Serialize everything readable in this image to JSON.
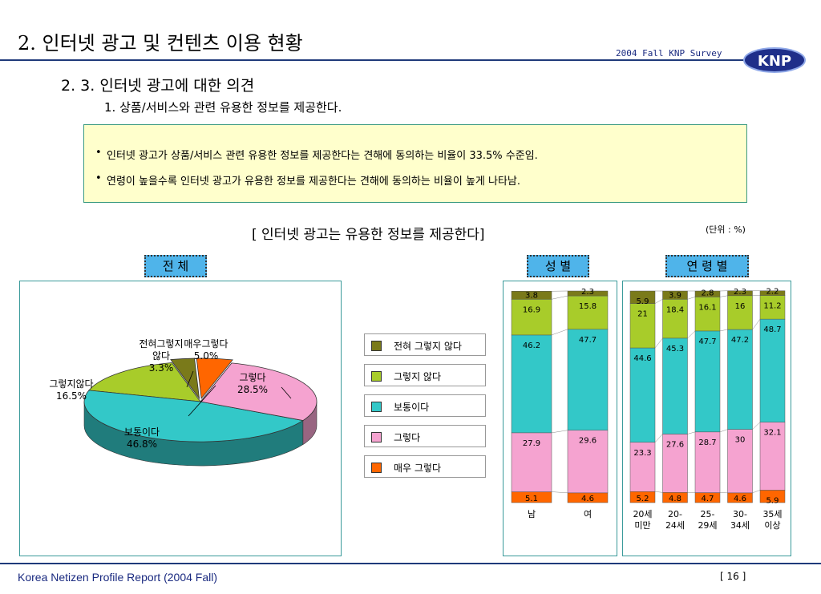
{
  "header": {
    "page_title": "2. 인터넷 광고 및 컨텐츠 이용 현황",
    "survey_label": "2004 Fall KNP Survey",
    "logo_text": "KNP"
  },
  "section": {
    "heading": "2. 3. 인터넷 광고에 대한 의견",
    "subheading": "1. 상품/서비스와 관련 유용한 정보를 제공한다."
  },
  "summary": {
    "bullets": [
      "인터넷 광고가 상품/서비스 관련 유용한 정보를 제공한다는 견해에 동의하는 비율이 33.5% 수준임.",
      "연령이 높을수록 인터넷 광고가 유용한 정보를 제공한다는 견해에 동의하는 비율이 높게 나타남."
    ]
  },
  "chart_header": {
    "title": "[ 인터넷 광고는 유용한 정보를 제공한다]",
    "unit": "(단위 : %)",
    "groups": {
      "total": "전 체",
      "gender": "성 별",
      "age": "연 령 별"
    }
  },
  "colors": {
    "strongly_disagree": "#7a7a1a",
    "disagree": "#a8cc2a",
    "neutral": "#33c8c8",
    "agree": "#f5a3d0",
    "strongly_agree": "#ff6600",
    "panel_border": "#3a9a9a",
    "tag_bg": "#4fb4ea"
  },
  "chart_data": [
    {
      "type": "pie",
      "group": "전 체",
      "slices": [
        {
          "label": "전혀그렇지 않다",
          "value": 3.3,
          "color": "#7a7a1a"
        },
        {
          "label": "그렇지않다",
          "value": 16.5,
          "color": "#a8cc2a"
        },
        {
          "label": "보통이다",
          "value": 46.8,
          "color": "#33c8c8"
        },
        {
          "label": "그렇다",
          "value": 28.5,
          "color": "#f5a3d0"
        },
        {
          "label": "매우그렇다",
          "value": 5.0,
          "color": "#ff6600"
        }
      ],
      "slice_labels": [
        {
          "name": "전혀그렇지 않다",
          "line1": "전혀그렇지",
          "line2": "않다",
          "pct": "3.3%"
        },
        {
          "name": "그렇지않다",
          "line1": "그렇지않다",
          "line2": "",
          "pct": "16.5%"
        },
        {
          "name": "보통이다",
          "line1": "보통이다",
          "line2": "",
          "pct": "46.8%"
        },
        {
          "name": "그렇다",
          "line1": "그렇다",
          "line2": "",
          "pct": "28.5%"
        },
        {
          "name": "매우그렇다",
          "line1": "매우그렇다",
          "line2": "",
          "pct": "5.0%"
        }
      ]
    },
    {
      "type": "bar",
      "stacked": true,
      "group": "성 별",
      "categories": [
        "남",
        "여"
      ],
      "ylim": [
        0,
        100
      ],
      "series": [
        {
          "name": "매우 그렇다",
          "values": [
            5.1,
            4.6
          ]
        },
        {
          "name": "그렇다",
          "values": [
            27.9,
            29.6
          ]
        },
        {
          "name": "보통이다",
          "values": [
            46.2,
            47.7
          ]
        },
        {
          "name": "그렇지 않다",
          "values": [
            16.9,
            15.8
          ]
        },
        {
          "name": "전혀 그렇지 않다",
          "values": [
            3.8,
            2.3
          ]
        }
      ]
    },
    {
      "type": "bar",
      "stacked": true,
      "group": "연 령 별",
      "categories": [
        "20세 미만",
        "20-24세",
        "25-29세",
        "30-34세",
        "35세 이상"
      ],
      "category_lines": [
        [
          "20세",
          "미만"
        ],
        [
          "20-",
          "24세"
        ],
        [
          "25-",
          "29세"
        ],
        [
          "30-",
          "34세"
        ],
        [
          "35세",
          "이상"
        ]
      ],
      "ylim": [
        0,
        100
      ],
      "series": [
        {
          "name": "매우 그렇다",
          "values": [
            5.2,
            4.8,
            4.7,
            4.6,
            5.9
          ]
        },
        {
          "name": "그렇다",
          "values": [
            23.3,
            27.6,
            28.7,
            30,
            32.1
          ]
        },
        {
          "name": "보통이다",
          "values": [
            44.6,
            45.3,
            47.7,
            47.2,
            48.7
          ]
        },
        {
          "name": "그렇지 않다",
          "values": [
            21,
            18.4,
            16.1,
            16,
            11.2
          ]
        },
        {
          "name": "전혀 그렇지 않다",
          "values": [
            5.9,
            3.9,
            2.8,
            2.3,
            2.2
          ]
        }
      ]
    }
  ],
  "legend": [
    {
      "label": "전혀 그렇지 않다",
      "color": "#7a7a1a"
    },
    {
      "label": "그렇지 않다",
      "color": "#a8cc2a"
    },
    {
      "label": "보통이다",
      "color": "#33c8c8"
    },
    {
      "label": "그렇다",
      "color": "#f5a3d0"
    },
    {
      "label": "매우 그렇다",
      "color": "#ff6600"
    }
  ],
  "footer": {
    "report": "Korea Netizen Profile Report (2004 Fall)",
    "page": "[ 16 ]"
  }
}
